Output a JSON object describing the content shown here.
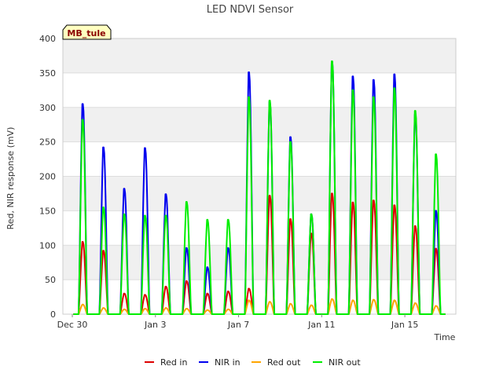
{
  "chart_data": {
    "type": "line",
    "title": "LED NDVI Sensor",
    "site_label": "MB_tule",
    "xlabel": "Time",
    "ylabel": "Red, NIR response (mV)",
    "ylim": [
      0,
      400
    ],
    "yticks": [
      0,
      50,
      100,
      150,
      200,
      250,
      300,
      350,
      400
    ],
    "xlim": [
      "2022-12-30",
      "2023-01-17"
    ],
    "xticks": [
      {
        "date": "2022-12-30",
        "label": "Dec 30"
      },
      {
        "date": "2023-01-03",
        "label": "Jan 3"
      },
      {
        "date": "2023-01-07",
        "label": "Jan 7"
      },
      {
        "date": "2023-01-11",
        "label": "Jan 11"
      },
      {
        "date": "2023-01-15",
        "label": "Jan 15"
      }
    ],
    "grid": true,
    "legend_position": "bottom",
    "series": [
      {
        "name": "Red in",
        "color": "#dd0000",
        "x": [
          "2022-12-30",
          "2022-12-31",
          "2023-01-01",
          "2023-01-02",
          "2023-01-03",
          "2023-01-04",
          "2023-01-05",
          "2023-01-06",
          "2023-01-07",
          "2023-01-08",
          "2023-01-09",
          "2023-01-10",
          "2023-01-11",
          "2023-01-12",
          "2023-01-13",
          "2023-01-14",
          "2023-01-15",
          "2023-01-16"
        ],
        "y": [
          105,
          92,
          30,
          28,
          40,
          48,
          30,
          33,
          37,
          172,
          138,
          117,
          175,
          162,
          165,
          158,
          128,
          95
        ]
      },
      {
        "name": "NIR in",
        "color": "#0000ee",
        "x": [
          "2022-12-30",
          "2022-12-31",
          "2023-01-01",
          "2023-01-02",
          "2023-01-03",
          "2023-01-04",
          "2023-01-05",
          "2023-01-06",
          "2023-01-07",
          "2023-01-08",
          "2023-01-09",
          "2023-01-10",
          "2023-01-11",
          "2023-01-12",
          "2023-01-13",
          "2023-01-14",
          "2023-01-15",
          "2023-01-16"
        ],
        "y": [
          305,
          242,
          182,
          241,
          174,
          96,
          68,
          96,
          351,
          308,
          257,
          145,
          366,
          345,
          340,
          348,
          290,
          150
        ]
      },
      {
        "name": "Red out",
        "color": "#ffa500",
        "x": [
          "2022-12-30",
          "2022-12-31",
          "2023-01-01",
          "2023-01-02",
          "2023-01-03",
          "2023-01-04",
          "2023-01-05",
          "2023-01-06",
          "2023-01-07",
          "2023-01-08",
          "2023-01-09",
          "2023-01-10",
          "2023-01-11",
          "2023-01-12",
          "2023-01-13",
          "2023-01-14",
          "2023-01-15",
          "2023-01-16"
        ],
        "y": [
          14,
          9,
          7,
          8,
          9,
          8,
          6,
          7,
          20,
          18,
          15,
          13,
          22,
          20,
          21,
          20,
          16,
          12
        ]
      },
      {
        "name": "NIR out",
        "color": "#00ee00",
        "x": [
          "2022-12-30",
          "2022-12-31",
          "2023-01-01",
          "2023-01-02",
          "2023-01-03",
          "2023-01-04",
          "2023-01-05",
          "2023-01-06",
          "2023-01-07",
          "2023-01-08",
          "2023-01-09",
          "2023-01-10",
          "2023-01-11",
          "2023-01-12",
          "2023-01-13",
          "2023-01-14",
          "2023-01-15",
          "2023-01-16"
        ],
        "y": [
          282,
          155,
          145,
          143,
          143,
          163,
          137,
          137,
          315,
          310,
          250,
          145,
          367,
          325,
          315,
          328,
          295,
          232
        ]
      }
    ]
  }
}
